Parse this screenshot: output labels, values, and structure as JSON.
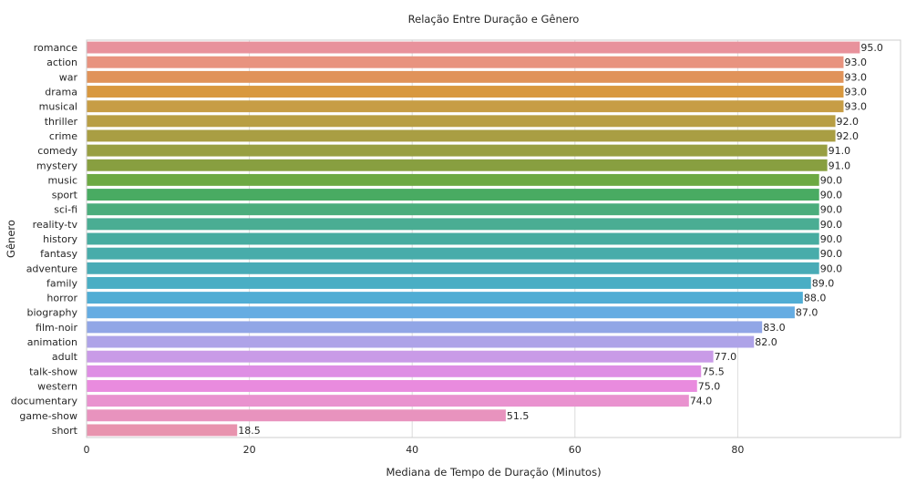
{
  "chart_data": {
    "type": "bar",
    "orientation": "horizontal",
    "title": "Relação Entre Duração e Gênero",
    "xlabel": "Mediana de Tempo de Duração (Minutos)",
    "ylabel": "Gênero",
    "xlim": [
      0,
      100
    ],
    "xticks": [
      0,
      20,
      40,
      60,
      80
    ],
    "grid": true,
    "categories": [
      "romance",
      "action",
      "war",
      "drama",
      "musical",
      "thriller",
      "crime",
      "comedy",
      "mystery",
      "music",
      "sport",
      "sci-fi",
      "reality-tv",
      "history",
      "fantasy",
      "adventure",
      "family",
      "horror",
      "biography",
      "film-noir",
      "animation",
      "adult",
      "talk-show",
      "western",
      "documentary",
      "game-show",
      "short"
    ],
    "values": [
      95.0,
      93.0,
      93.0,
      93.0,
      93.0,
      92.0,
      92.0,
      91.0,
      91.0,
      90.0,
      90.0,
      90.0,
      90.0,
      90.0,
      90.0,
      90.0,
      89.0,
      88.0,
      87.0,
      83.0,
      82.0,
      77.0,
      75.5,
      75.0,
      74.0,
      51.5,
      18.5
    ],
    "value_labels": [
      "95.0",
      "93.0",
      "93.0",
      "93.0",
      "93.0",
      "92.0",
      "92.0",
      "91.0",
      "91.0",
      "90.0",
      "90.0",
      "90.0",
      "90.0",
      "90.0",
      "90.0",
      "90.0",
      "89.0",
      "88.0",
      "87.0",
      "83.0",
      "82.0",
      "77.0",
      "75.5",
      "75.0",
      "74.0",
      "51.5",
      "18.5"
    ],
    "colors": [
      "#e8929c",
      "#e8937f",
      "#e0935a",
      "#d8983f",
      "#c79d45",
      "#b89e44",
      "#a99e43",
      "#989f42",
      "#889f40",
      "#6da943",
      "#49ab62",
      "#4bad7c",
      "#4aad93",
      "#47aca0",
      "#48acaa",
      "#49abb6",
      "#4aaec4",
      "#50add4",
      "#65ace2",
      "#91a6e6",
      "#aea3e8",
      "#c99be7",
      "#de8ee4",
      "#e98bde",
      "#e992cf",
      "#e893be",
      "#e893ae"
    ]
  }
}
